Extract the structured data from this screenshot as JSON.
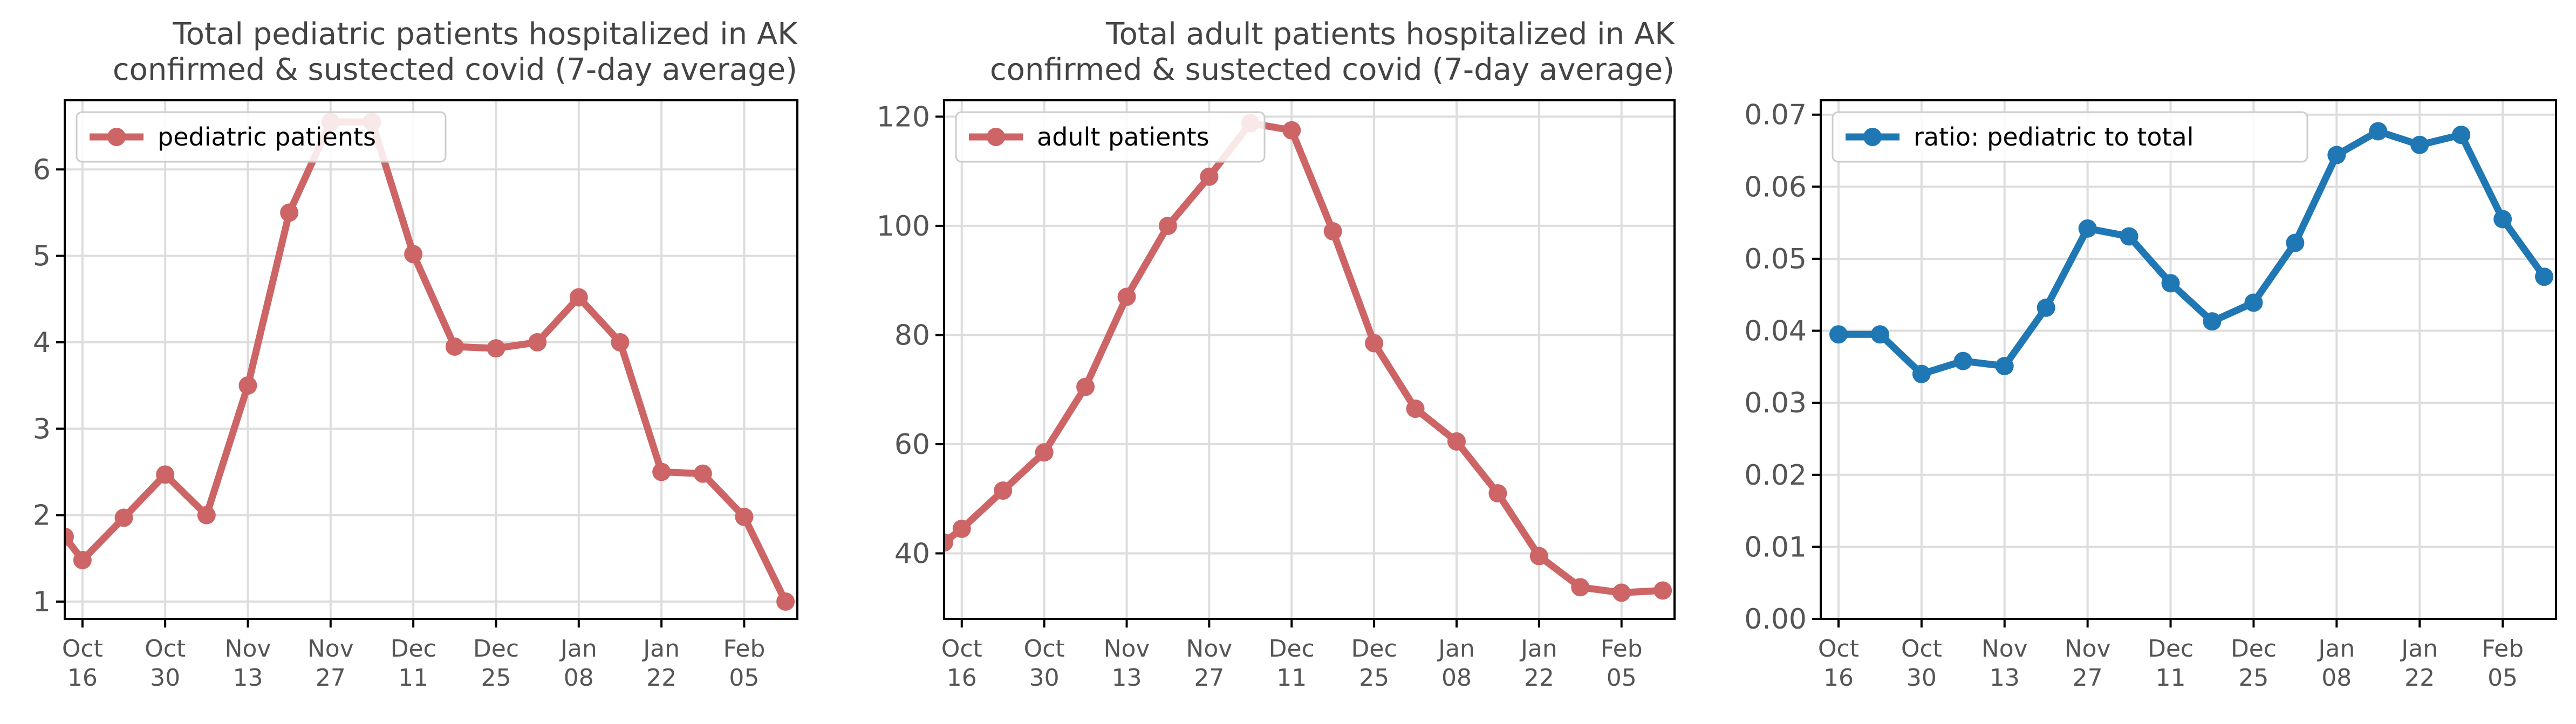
{
  "x_axis_labels": [
    {
      "date": "2021-10-16",
      "line1": "Oct",
      "line2": "16"
    },
    {
      "date": "2021-10-30",
      "line1": "Oct",
      "line2": "30"
    },
    {
      "date": "2021-11-13",
      "line1": "Nov",
      "line2": "13"
    },
    {
      "date": "2021-11-27",
      "line1": "Nov",
      "line2": "27"
    },
    {
      "date": "2021-12-11",
      "line1": "Dec",
      "line2": "11"
    },
    {
      "date": "2021-12-25",
      "line1": "Dec",
      "line2": "25"
    },
    {
      "date": "2022-01-08",
      "line1": "Jan",
      "line2": "08"
    },
    {
      "date": "2022-01-22",
      "line1": "Jan",
      "line2": "22"
    },
    {
      "date": "2022-02-05",
      "line1": "Feb",
      "line2": "05"
    }
  ],
  "chart_data": [
    {
      "type": "line",
      "title": [
        "Total pediatric patients hospitalized in AK",
        "confirmed & sustected covid (7-day average)"
      ],
      "xlim": [
        "2021-10-13",
        "2022-02-14"
      ],
      "ylim": [
        0.8,
        6.8
      ],
      "yticks": [
        1,
        2,
        3,
        4,
        5,
        6
      ],
      "ytick_decimals": 0,
      "grid": true,
      "legend": "top-left",
      "series": [
        {
          "name": "pediatric patients",
          "color": "#cd6465",
          "x": [
            "2021-10-13",
            "2021-10-16",
            "2021-10-23",
            "2021-10-30",
            "2021-11-06",
            "2021-11-13",
            "2021-11-20",
            "2021-11-27",
            "2021-12-04",
            "2021-12-11",
            "2021-12-18",
            "2021-12-25",
            "2022-01-01",
            "2022-01-08",
            "2022-01-15",
            "2022-01-22",
            "2022-01-29",
            "2022-02-05",
            "2022-02-12"
          ],
          "y": [
            1.75,
            1.48,
            1.97,
            2.47,
            2.0,
            3.5,
            5.5,
            6.55,
            6.55,
            5.02,
            3.95,
            3.93,
            4.0,
            4.52,
            4.0,
            2.5,
            2.48,
            1.98,
            1.0
          ]
        }
      ]
    },
    {
      "type": "line",
      "title": [
        "Total adult patients hospitalized in AK",
        "confirmed & sustected covid (7-day average)"
      ],
      "xlim": [
        "2021-10-13",
        "2022-02-14"
      ],
      "ylim": [
        28,
        123
      ],
      "yticks": [
        40,
        60,
        80,
        100,
        120
      ],
      "ytick_decimals": 0,
      "grid": true,
      "legend": "top-left",
      "series": [
        {
          "name": "adult patients",
          "color": "#cd6465",
          "x": [
            "2021-10-13",
            "2021-10-16",
            "2021-10-23",
            "2021-10-30",
            "2021-11-06",
            "2021-11-13",
            "2021-11-20",
            "2021-11-27",
            "2021-12-04",
            "2021-12-11",
            "2021-12-18",
            "2021-12-25",
            "2022-01-01",
            "2022-01-08",
            "2022-01-15",
            "2022-01-22",
            "2022-01-29",
            "2022-02-05",
            "2022-02-12"
          ],
          "y": [
            42,
            44.5,
            51.5,
            58.5,
            70.5,
            87,
            100,
            109,
            118.8,
            117.5,
            99,
            78.5,
            66.5,
            60.5,
            51,
            39.5,
            33.8,
            32.8,
            33.2
          ]
        }
      ]
    },
    {
      "type": "line",
      "title": [],
      "xlim": [
        "2021-10-13",
        "2022-02-14"
      ],
      "ylim": [
        0.0,
        0.072
      ],
      "yticks": [
        0.0,
        0.01,
        0.02,
        0.03,
        0.04,
        0.05,
        0.06,
        0.07
      ],
      "ytick_decimals": 2,
      "grid": true,
      "legend": "top-left",
      "series": [
        {
          "name": "ratio: pediatric to total",
          "color": "#1f77b4",
          "x": [
            "2021-10-16",
            "2021-10-23",
            "2021-10-30",
            "2021-11-06",
            "2021-11-13",
            "2021-11-20",
            "2021-11-27",
            "2021-12-04",
            "2021-12-11",
            "2021-12-18",
            "2021-12-25",
            "2022-01-01",
            "2022-01-08",
            "2022-01-15",
            "2022-01-22",
            "2022-01-29",
            "2022-02-05",
            "2022-02-12"
          ],
          "y": [
            0.0395,
            0.0395,
            0.034,
            0.0358,
            0.0351,
            0.0432,
            0.0542,
            0.0531,
            0.0466,
            0.0413,
            0.0439,
            0.0522,
            0.0644,
            0.0677,
            0.0658,
            0.0672,
            0.0555,
            0.0475
          ]
        }
      ]
    }
  ]
}
